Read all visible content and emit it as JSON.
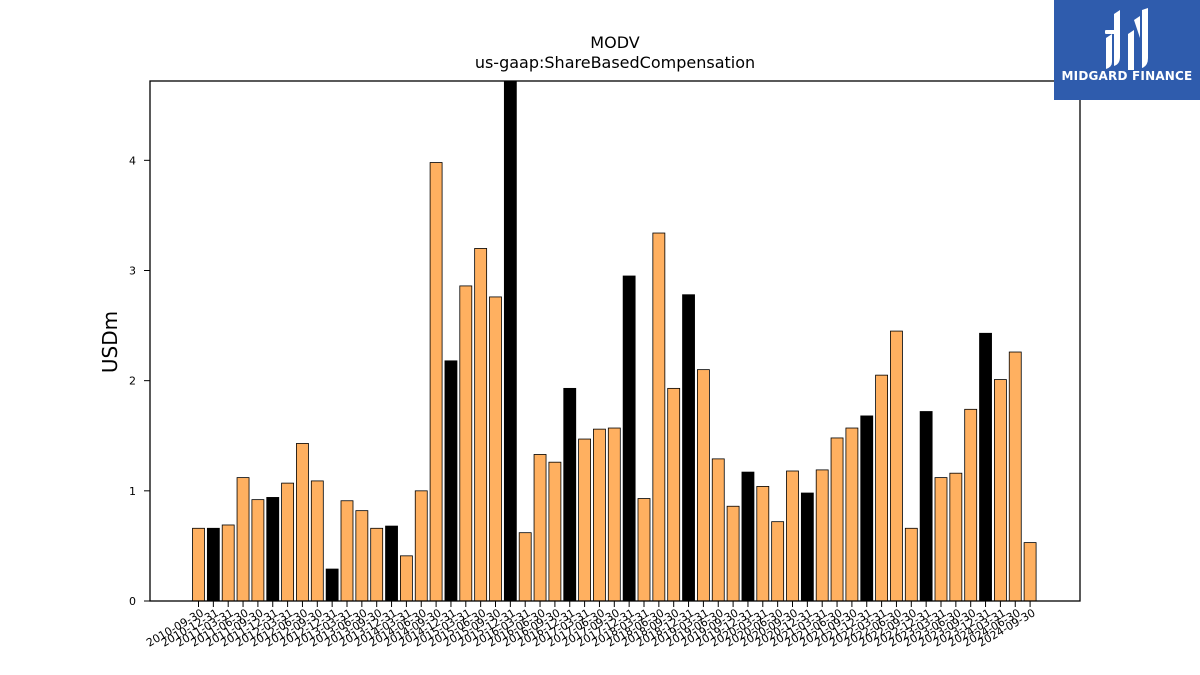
{
  "brand": {
    "name": "MIDGARD FINANCE",
    "bg_color": "#2f5cad"
  },
  "chart_data": {
    "type": "bar",
    "title": "MODV",
    "subtitle": "us-gaap:ShareBasedCompensation",
    "xlabel": "",
    "ylabel": "USDm",
    "ylim": [
      0,
      4.72
    ],
    "yticks": [
      0,
      1,
      2,
      3,
      4
    ],
    "grid": false,
    "colors": {
      "quarter": "#ffb060",
      "fiscal_year_end": "#000000",
      "edge": "#000000"
    },
    "categories": [
      "2010-09-30",
      "2010-12-31",
      "2011-03-31",
      "2011-06-30",
      "2011-09-30",
      "2011-12-31",
      "2012-03-31",
      "2012-06-30",
      "2012-09-30",
      "2012-12-31",
      "2013-03-31",
      "2013-06-30",
      "2013-09-30",
      "2013-12-31",
      "2014-03-31",
      "2014-06-30",
      "2014-09-30",
      "2014-12-31",
      "2015-03-31",
      "2015-06-30",
      "2015-09-30",
      "2015-12-31",
      "2016-03-31",
      "2016-06-30",
      "2016-09-30",
      "2016-12-31",
      "2017-03-31",
      "2017-06-30",
      "2017-09-30",
      "2017-12-31",
      "2018-03-31",
      "2018-06-30",
      "2018-09-30",
      "2018-12-31",
      "2019-03-31",
      "2019-06-30",
      "2019-09-30",
      "2019-12-31",
      "2020-03-31",
      "2020-06-30",
      "2020-09-30",
      "2020-12-31",
      "2021-03-31",
      "2021-06-30",
      "2021-09-30",
      "2021-12-31",
      "2022-03-31",
      "2022-06-30",
      "2022-09-30",
      "2022-12-31",
      "2023-03-31",
      "2023-06-30",
      "2023-09-30",
      "2023-12-31",
      "2024-03-31",
      "2024-06-30",
      "2024-09-30"
    ],
    "values": [
      0.66,
      0.66,
      0.69,
      1.12,
      0.92,
      0.94,
      1.07,
      1.43,
      1.09,
      0.29,
      0.91,
      0.82,
      0.66,
      0.68,
      0.41,
      1.0,
      3.98,
      2.18,
      2.86,
      3.2,
      2.76,
      4.72,
      0.62,
      1.33,
      1.26,
      1.93,
      1.47,
      1.56,
      1.57,
      2.95,
      0.93,
      3.34,
      1.93,
      2.78,
      2.1,
      1.29,
      0.86,
      1.17,
      1.04,
      0.72,
      1.18,
      0.98,
      1.19,
      1.48,
      1.57,
      1.68,
      2.05,
      2.45,
      0.66,
      1.72,
      1.12,
      1.16,
      1.74,
      2.43,
      2.01,
      2.26,
      0.53
    ],
    "highlight": [
      false,
      true,
      false,
      false,
      false,
      true,
      false,
      false,
      false,
      true,
      false,
      false,
      false,
      true,
      false,
      false,
      false,
      true,
      false,
      false,
      false,
      true,
      false,
      false,
      false,
      true,
      false,
      false,
      false,
      true,
      false,
      false,
      false,
      true,
      false,
      false,
      false,
      true,
      false,
      false,
      false,
      true,
      false,
      false,
      false,
      true,
      false,
      false,
      false,
      true,
      false,
      false,
      false,
      true,
      false,
      false,
      false
    ]
  }
}
